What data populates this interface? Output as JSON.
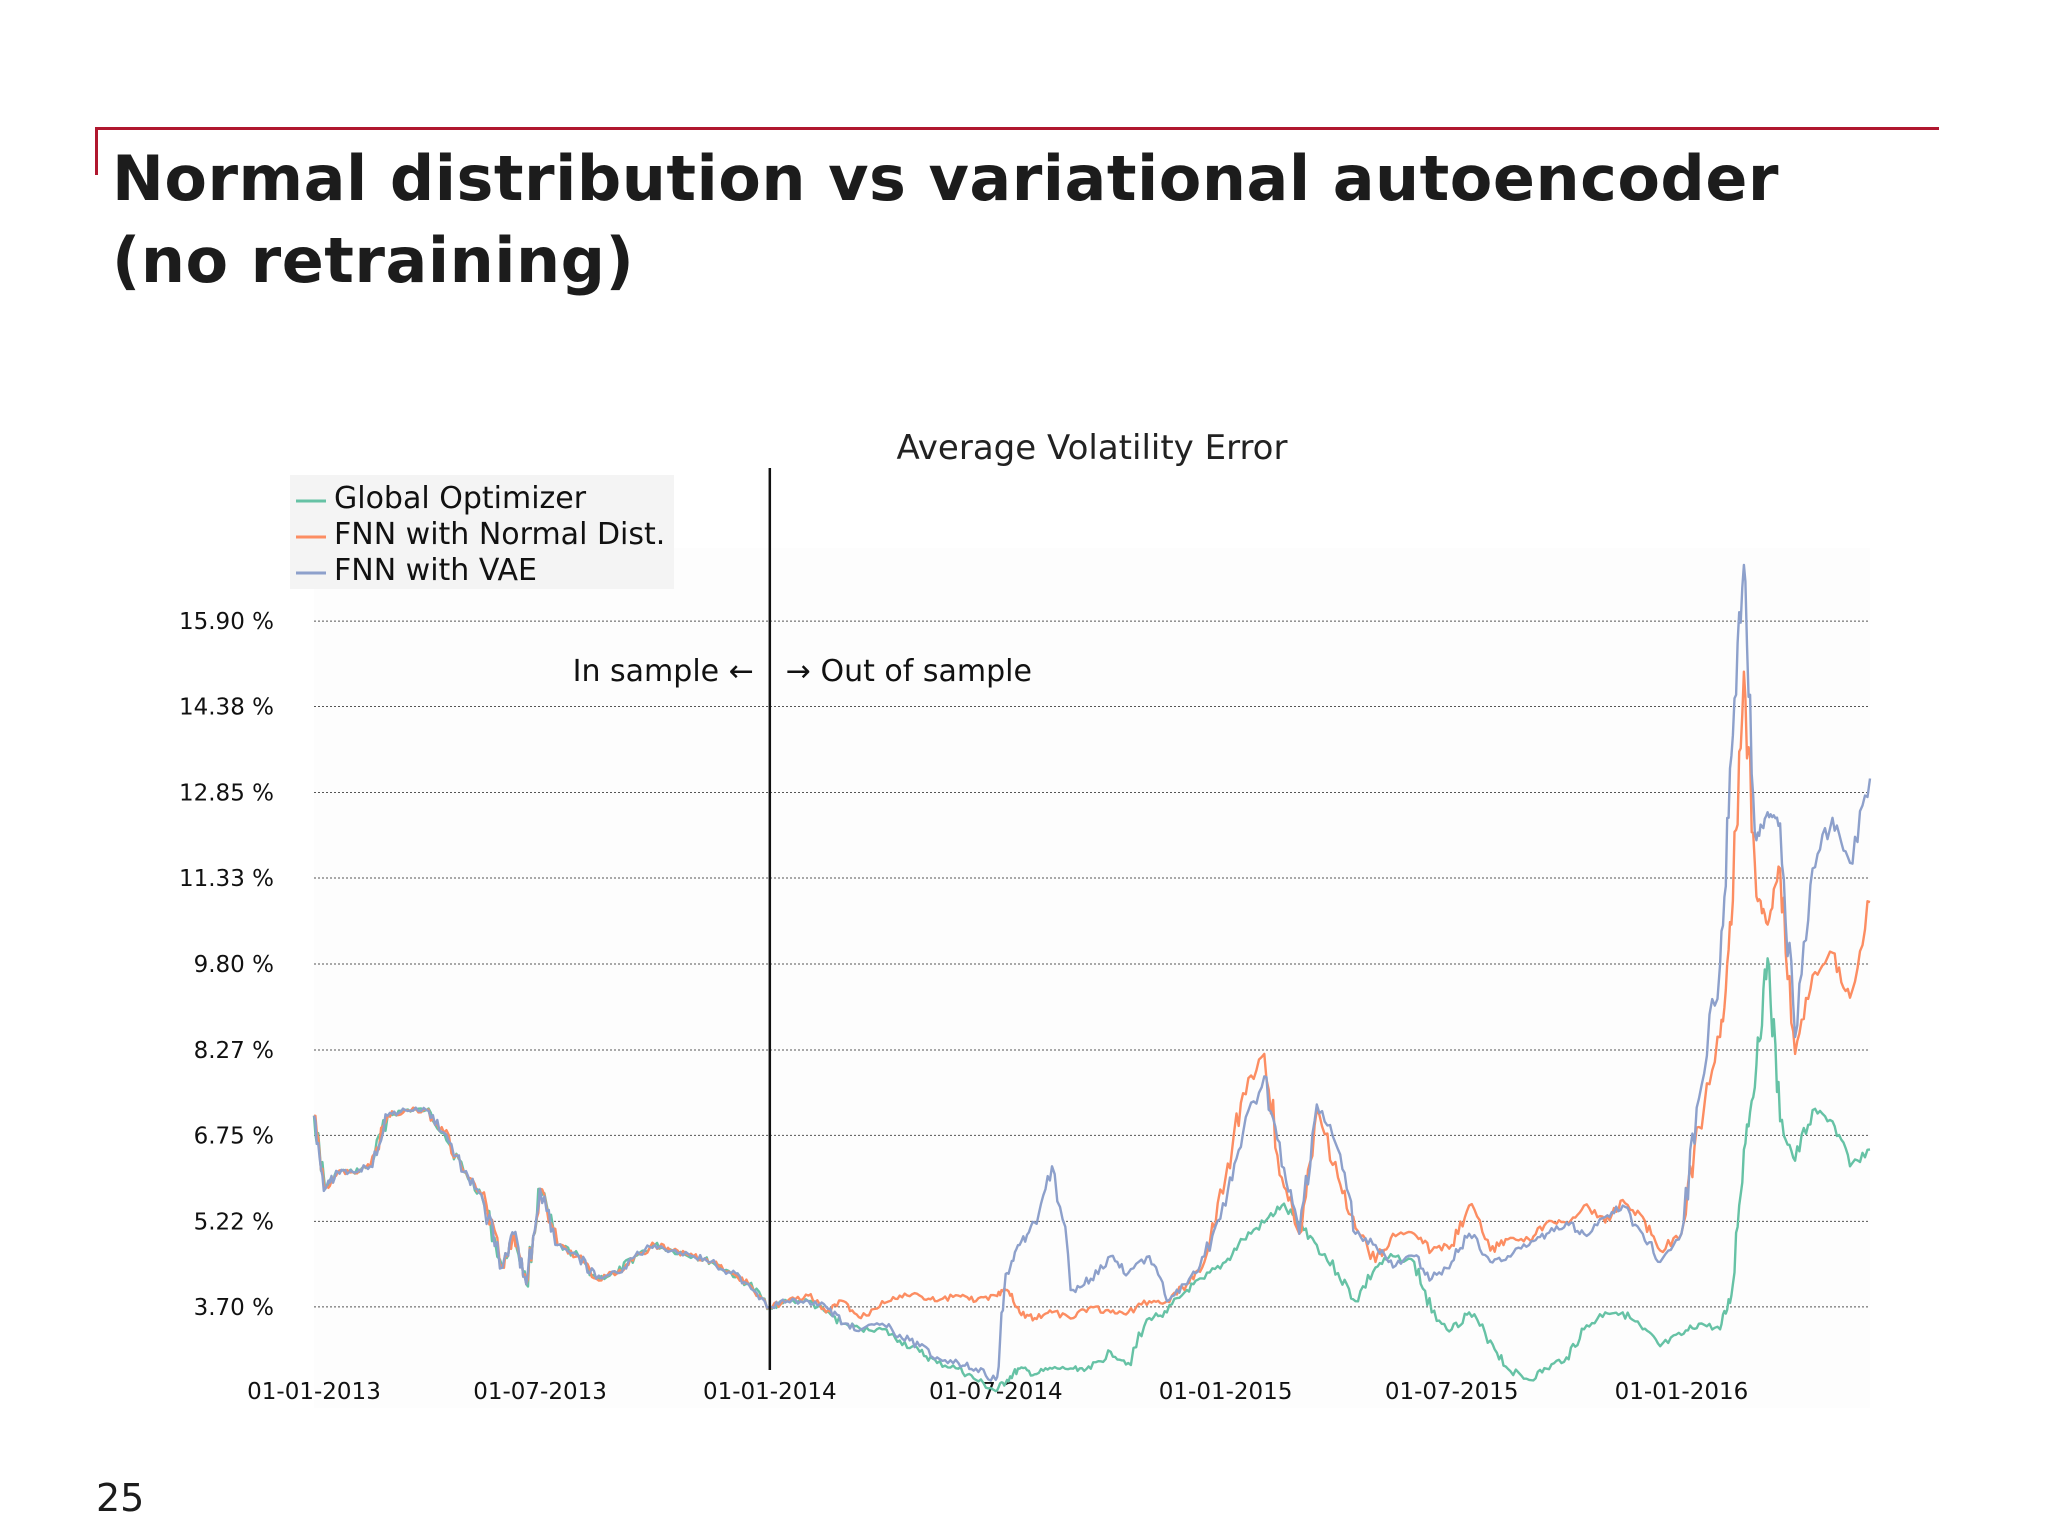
{
  "slide": {
    "title": "Normal distribution vs variational autoencoder (no retraining)",
    "page_number": "25"
  },
  "colors": {
    "accent": "#b0172f",
    "global_optimizer": "#66c2a5",
    "fnn_normal": "#fc8d62",
    "fnn_vae": "#8da0cb"
  },
  "chart_data": {
    "type": "line",
    "title": "Average Volatility Error",
    "xlabel": "",
    "ylabel": "",
    "y_ticks": [
      3.7,
      5.22,
      6.75,
      8.27,
      9.8,
      11.33,
      12.85,
      14.38,
      15.9
    ],
    "y_tick_labels": [
      "3.70 %",
      "5.22 %",
      "6.75 %",
      "8.27 %",
      "9.80 %",
      "11.33 %",
      "12.85 %",
      "14.38 %",
      "15.90 %"
    ],
    "x_ticks": [
      "2013-01-01",
      "2013-07-01",
      "2014-01-01",
      "2014-07-01",
      "2015-01-01",
      "2015-07-01",
      "2016-01-01"
    ],
    "x_tick_labels": [
      "01-01-2013",
      "01-07-2013",
      "01-01-2014",
      "01-07-2014",
      "01-01-2015",
      "01-07-2015",
      "01-01-2016"
    ],
    "xlim": [
      "2013-01-01",
      "2016-05-31"
    ],
    "ylim": [
      1.9,
      17.2
    ],
    "grid": "horizontal dotted",
    "legend_position": "top-left",
    "divider": {
      "date": "2014-01-01",
      "left_label": "In sample",
      "right_label": "Out of sample",
      "left_arrow": "←",
      "right_arrow": "→"
    },
    "series": [
      {
        "name": "Global Optimizer",
        "x": [
          "2013-01-01",
          "2013-01-10",
          "2013-01-20",
          "2013-02-01",
          "2013-02-15",
          "2013-03-01",
          "2013-03-15",
          "2013-04-01",
          "2013-04-15",
          "2013-05-01",
          "2013-05-15",
          "2013-06-01",
          "2013-06-10",
          "2013-06-20",
          "2013-07-01",
          "2013-07-15",
          "2013-08-01",
          "2013-08-15",
          "2013-09-01",
          "2013-09-15",
          "2013-10-01",
          "2013-10-15",
          "2013-11-01",
          "2013-11-15",
          "2013-12-01",
          "2013-12-15",
          "2014-01-01",
          "2014-01-15",
          "2014-02-01",
          "2014-02-15",
          "2014-03-01",
          "2014-03-15",
          "2014-04-01",
          "2014-04-15",
          "2014-05-01",
          "2014-05-15",
          "2014-06-01",
          "2014-06-15",
          "2014-07-01",
          "2014-07-10",
          "2014-07-20",
          "2014-08-01",
          "2014-08-15",
          "2014-09-01",
          "2014-09-15",
          "2014-10-01",
          "2014-10-15",
          "2014-11-01",
          "2014-11-15",
          "2014-12-01",
          "2014-12-15",
          "2015-01-01",
          "2015-01-15",
          "2015-02-01",
          "2015-02-15",
          "2015-03-01",
          "2015-03-15",
          "2015-04-01",
          "2015-04-15",
          "2015-05-01",
          "2015-05-15",
          "2015-06-01",
          "2015-06-15",
          "2015-07-01",
          "2015-07-15",
          "2015-08-01",
          "2015-08-15",
          "2015-09-01",
          "2015-09-15",
          "2015-10-01",
          "2015-10-15",
          "2015-11-01",
          "2015-11-15",
          "2015-12-01",
          "2015-12-15",
          "2016-01-01",
          "2016-01-15",
          "2016-02-01",
          "2016-02-10",
          "2016-02-20",
          "2016-03-01",
          "2016-03-10",
          "2016-03-20",
          "2016-04-01",
          "2016-04-15",
          "2016-05-01",
          "2016-05-15",
          "2016-05-31"
        ],
        "y": [
          7.1,
          5.8,
          6.1,
          6.1,
          6.2,
          7.1,
          7.2,
          7.2,
          6.8,
          6.1,
          5.7,
          4.4,
          5.0,
          4.1,
          5.8,
          4.8,
          4.6,
          4.2,
          4.3,
          4.6,
          4.8,
          4.7,
          4.6,
          4.5,
          4.3,
          4.1,
          3.7,
          3.8,
          3.8,
          3.6,
          3.4,
          3.3,
          3.3,
          3.1,
          2.9,
          2.7,
          2.6,
          2.4,
          2.2,
          2.4,
          2.6,
          2.5,
          2.6,
          2.6,
          2.6,
          2.9,
          2.7,
          3.5,
          3.6,
          4.0,
          4.2,
          4.5,
          4.9,
          5.2,
          5.5,
          5.2,
          4.8,
          4.3,
          3.8,
          4.4,
          4.6,
          4.5,
          3.6,
          3.3,
          3.6,
          3.1,
          2.6,
          2.4,
          2.6,
          2.8,
          3.3,
          3.6,
          3.6,
          3.3,
          3.0,
          3.2,
          3.4,
          3.3,
          3.9,
          6.5,
          8.0,
          9.9,
          7.0,
          6.3,
          7.2,
          7.0,
          6.2,
          6.5
        ]
      },
      {
        "name": "FNN with Normal Dist.",
        "x": [
          "2013-01-01",
          "2013-01-10",
          "2013-01-20",
          "2013-02-01",
          "2013-02-15",
          "2013-03-01",
          "2013-03-15",
          "2013-04-01",
          "2013-04-15",
          "2013-05-01",
          "2013-05-15",
          "2013-06-01",
          "2013-06-10",
          "2013-06-20",
          "2013-07-01",
          "2013-07-15",
          "2013-08-01",
          "2013-08-15",
          "2013-09-01",
          "2013-09-15",
          "2013-10-01",
          "2013-10-15",
          "2013-11-01",
          "2013-11-15",
          "2013-12-01",
          "2013-12-15",
          "2014-01-01",
          "2014-01-15",
          "2014-02-01",
          "2014-02-15",
          "2014-03-01",
          "2014-03-15",
          "2014-04-01",
          "2014-04-15",
          "2014-05-01",
          "2014-05-15",
          "2014-06-01",
          "2014-06-15",
          "2014-07-01",
          "2014-07-10",
          "2014-07-20",
          "2014-08-01",
          "2014-08-15",
          "2014-09-01",
          "2014-09-15",
          "2014-10-01",
          "2014-10-15",
          "2014-11-01",
          "2014-11-15",
          "2014-12-01",
          "2014-12-15",
          "2015-01-01",
          "2015-01-15",
          "2015-02-01",
          "2015-02-15",
          "2015-03-01",
          "2015-03-15",
          "2015-04-01",
          "2015-04-15",
          "2015-05-01",
          "2015-05-15",
          "2015-06-01",
          "2015-06-15",
          "2015-07-01",
          "2015-07-15",
          "2015-08-01",
          "2015-08-15",
          "2015-09-01",
          "2015-09-15",
          "2015-10-01",
          "2015-10-15",
          "2015-11-01",
          "2015-11-15",
          "2015-12-01",
          "2015-12-15",
          "2016-01-01",
          "2016-01-15",
          "2016-02-01",
          "2016-02-10",
          "2016-02-20",
          "2016-03-01",
          "2016-03-10",
          "2016-03-20",
          "2016-04-01",
          "2016-04-15",
          "2016-05-01",
          "2016-05-15",
          "2016-05-31"
        ],
        "y": [
          7.1,
          5.8,
          6.1,
          6.1,
          6.2,
          7.1,
          7.2,
          7.2,
          6.8,
          6.1,
          5.7,
          4.4,
          5.0,
          4.1,
          5.8,
          4.8,
          4.6,
          4.2,
          4.3,
          4.6,
          4.8,
          4.7,
          4.6,
          4.5,
          4.3,
          4.1,
          3.7,
          3.8,
          3.9,
          3.6,
          3.8,
          3.5,
          3.8,
          3.9,
          3.9,
          3.8,
          3.9,
          3.8,
          3.9,
          4.0,
          3.6,
          3.5,
          3.6,
          3.5,
          3.7,
          3.6,
          3.6,
          3.8,
          3.8,
          4.1,
          4.5,
          6.0,
          7.5,
          8.2,
          6.0,
          5.0,
          7.2,
          6.0,
          5.1,
          4.5,
          5.0,
          5.0,
          4.7,
          4.8,
          5.5,
          4.7,
          4.9,
          4.9,
          5.2,
          5.2,
          5.5,
          5.2,
          5.6,
          5.3,
          4.7,
          5.0,
          6.9,
          8.5,
          10.5,
          15.0,
          11.0,
          10.5,
          11.5,
          8.2,
          9.6,
          10.0,
          9.2,
          10.9
        ]
      },
      {
        "name": "FNN with VAE",
        "x": [
          "2013-01-01",
          "2013-01-10",
          "2013-01-20",
          "2013-02-01",
          "2013-02-15",
          "2013-03-01",
          "2013-03-15",
          "2013-04-01",
          "2013-04-15",
          "2013-05-01",
          "2013-05-15",
          "2013-06-01",
          "2013-06-10",
          "2013-06-20",
          "2013-07-01",
          "2013-07-15",
          "2013-08-01",
          "2013-08-15",
          "2013-09-01",
          "2013-09-15",
          "2013-10-01",
          "2013-10-15",
          "2013-11-01",
          "2013-11-15",
          "2013-12-01",
          "2013-12-15",
          "2014-01-01",
          "2014-01-15",
          "2014-02-01",
          "2014-02-15",
          "2014-03-01",
          "2014-03-15",
          "2014-04-01",
          "2014-04-15",
          "2014-05-01",
          "2014-05-15",
          "2014-06-01",
          "2014-06-15",
          "2014-07-01",
          "2014-07-10",
          "2014-07-20",
          "2014-08-01",
          "2014-08-15",
          "2014-09-01",
          "2014-09-15",
          "2014-10-01",
          "2014-10-15",
          "2014-11-01",
          "2014-11-15",
          "2014-12-01",
          "2014-12-15",
          "2015-01-01",
          "2015-01-15",
          "2015-02-01",
          "2015-02-15",
          "2015-03-01",
          "2015-03-15",
          "2015-04-01",
          "2015-04-15",
          "2015-05-01",
          "2015-05-15",
          "2015-06-01",
          "2015-06-15",
          "2015-07-01",
          "2015-07-15",
          "2015-08-01",
          "2015-08-15",
          "2015-09-01",
          "2015-09-15",
          "2015-10-01",
          "2015-10-15",
          "2015-11-01",
          "2015-11-15",
          "2015-12-01",
          "2015-12-15",
          "2016-01-01",
          "2016-01-15",
          "2016-02-01",
          "2016-02-10",
          "2016-02-20",
          "2016-03-01",
          "2016-03-10",
          "2016-03-20",
          "2016-04-01",
          "2016-04-15",
          "2016-05-01",
          "2016-05-15",
          "2016-05-31"
        ],
        "y": [
          7.1,
          5.8,
          6.1,
          6.1,
          6.2,
          7.1,
          7.2,
          7.2,
          6.8,
          6.1,
          5.7,
          4.4,
          5.0,
          4.1,
          5.8,
          4.8,
          4.6,
          4.2,
          4.3,
          4.6,
          4.8,
          4.7,
          4.6,
          4.5,
          4.3,
          4.1,
          3.7,
          3.8,
          3.8,
          3.7,
          3.4,
          3.3,
          3.4,
          3.2,
          3.0,
          2.8,
          2.7,
          2.6,
          2.4,
          4.3,
          4.8,
          5.2,
          6.2,
          4.0,
          4.2,
          4.6,
          4.3,
          4.6,
          3.8,
          4.1,
          4.6,
          5.5,
          6.8,
          7.8,
          6.2,
          5.0,
          7.3,
          6.5,
          5.0,
          4.8,
          4.4,
          4.6,
          4.2,
          4.5,
          5.0,
          4.5,
          4.6,
          4.8,
          5.0,
          5.2,
          5.0,
          5.3,
          5.5,
          5.0,
          4.5,
          5.0,
          7.4,
          9.8,
          13.5,
          16.9,
          12.0,
          12.5,
          12.3,
          8.5,
          11.5,
          12.4,
          11.6,
          13.1
        ]
      }
    ]
  }
}
